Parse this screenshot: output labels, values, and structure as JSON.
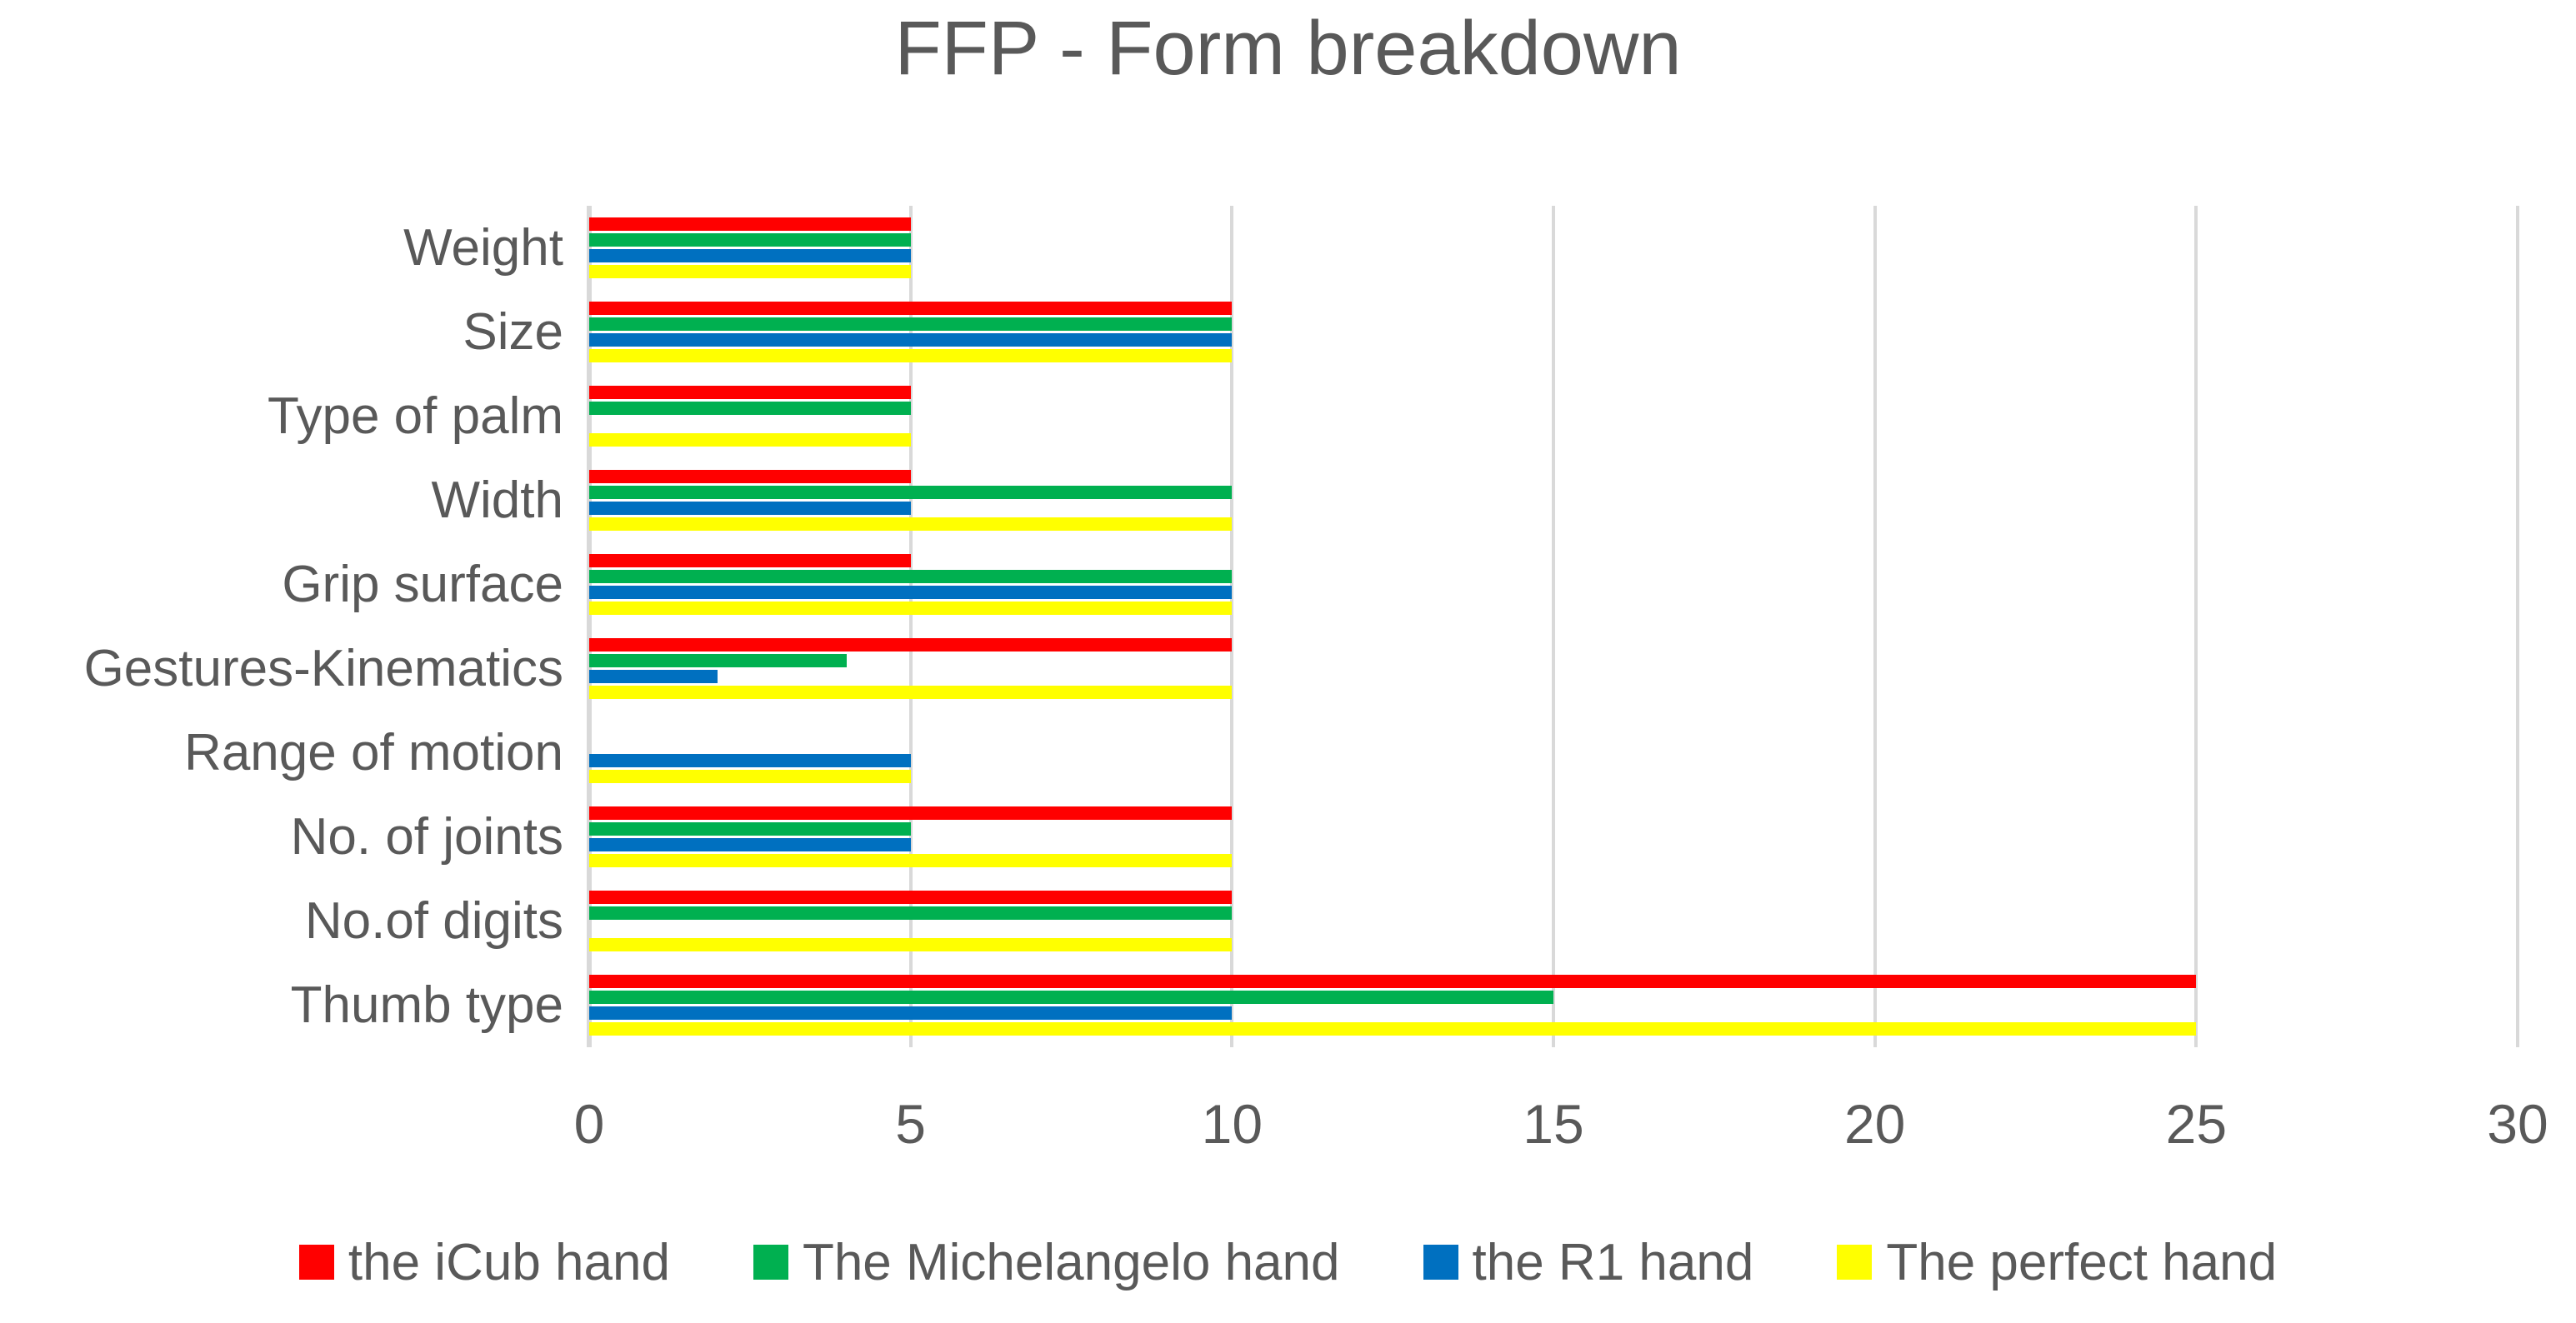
{
  "title": "FFP - Form breakdown",
  "colors": {
    "axis_text": "#595959",
    "gridline": "#D9D9D9",
    "background": "#FFFFFF",
    "series_red": "#FF0000",
    "series_green": "#00B050",
    "series_blue": "#0070C0",
    "series_yellow": "#FFFF00"
  },
  "chart_data": {
    "type": "bar",
    "orientation": "horizontal",
    "title": "FFP - Form breakdown",
    "xlabel": "",
    "ylabel": "",
    "xlim": [
      0,
      30
    ],
    "x_ticks": [
      0,
      5,
      10,
      15,
      20,
      25,
      30
    ],
    "grid": true,
    "legend_position": "bottom",
    "categories": [
      "Weight",
      "Size",
      "Type of palm",
      "Width",
      "Grip surface",
      "Gestures-Kinematics",
      "Range of motion",
      "No. of joints",
      "No.of digits",
      "Thumb type"
    ],
    "series": [
      {
        "name": "the iCub hand",
        "color": "#FF0000",
        "values": [
          5,
          10,
          5,
          5,
          5,
          10,
          0,
          10,
          10,
          25
        ]
      },
      {
        "name": "The Michelangelo hand",
        "color": "#00B050",
        "values": [
          5,
          10,
          5,
          10,
          10,
          4,
          0,
          5,
          10,
          15
        ]
      },
      {
        "name": "the R1 hand",
        "color": "#0070C0",
        "values": [
          5,
          10,
          0,
          5,
          10,
          2,
          5,
          5,
          0,
          10
        ]
      },
      {
        "name": "The perfect hand",
        "color": "#FFFF00",
        "values": [
          5,
          10,
          5,
          10,
          10,
          10,
          5,
          10,
          10,
          25
        ]
      }
    ]
  }
}
